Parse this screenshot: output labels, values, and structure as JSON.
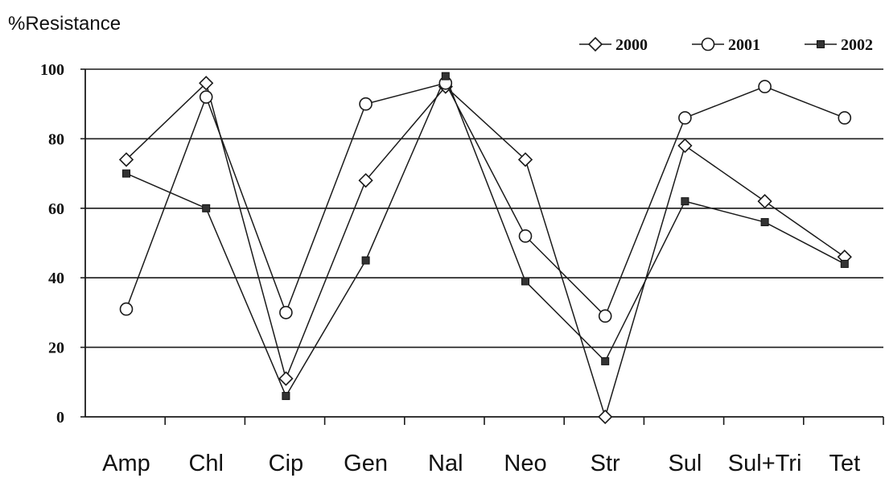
{
  "chart_data": {
    "type": "line",
    "title": "",
    "ylabel": "%Resistance",
    "xlabel": "",
    "categories": [
      "Amp",
      "Chl",
      "Cip",
      "Gen",
      "Nal",
      "Neo",
      "Str",
      "Sul",
      "Sul+Tri",
      "Tet"
    ],
    "ylim": [
      0,
      100
    ],
    "yticks": [
      0,
      20,
      40,
      60,
      80,
      100
    ],
    "grid": "horizontal",
    "legend": "top-right",
    "series": [
      {
        "name": "2000",
        "marker": "diamond-open",
        "values": [
          74,
          96,
          11,
          68,
          95,
          74,
          0,
          78,
          62,
          46
        ]
      },
      {
        "name": "2001",
        "marker": "circle-open",
        "values": [
          31,
          92,
          30,
          90,
          96,
          52,
          29,
          86,
          95,
          86
        ]
      },
      {
        "name": "2002",
        "marker": "square-filled",
        "values": [
          70,
          60,
          6,
          45,
          98,
          39,
          16,
          62,
          56,
          44
        ]
      }
    ]
  }
}
